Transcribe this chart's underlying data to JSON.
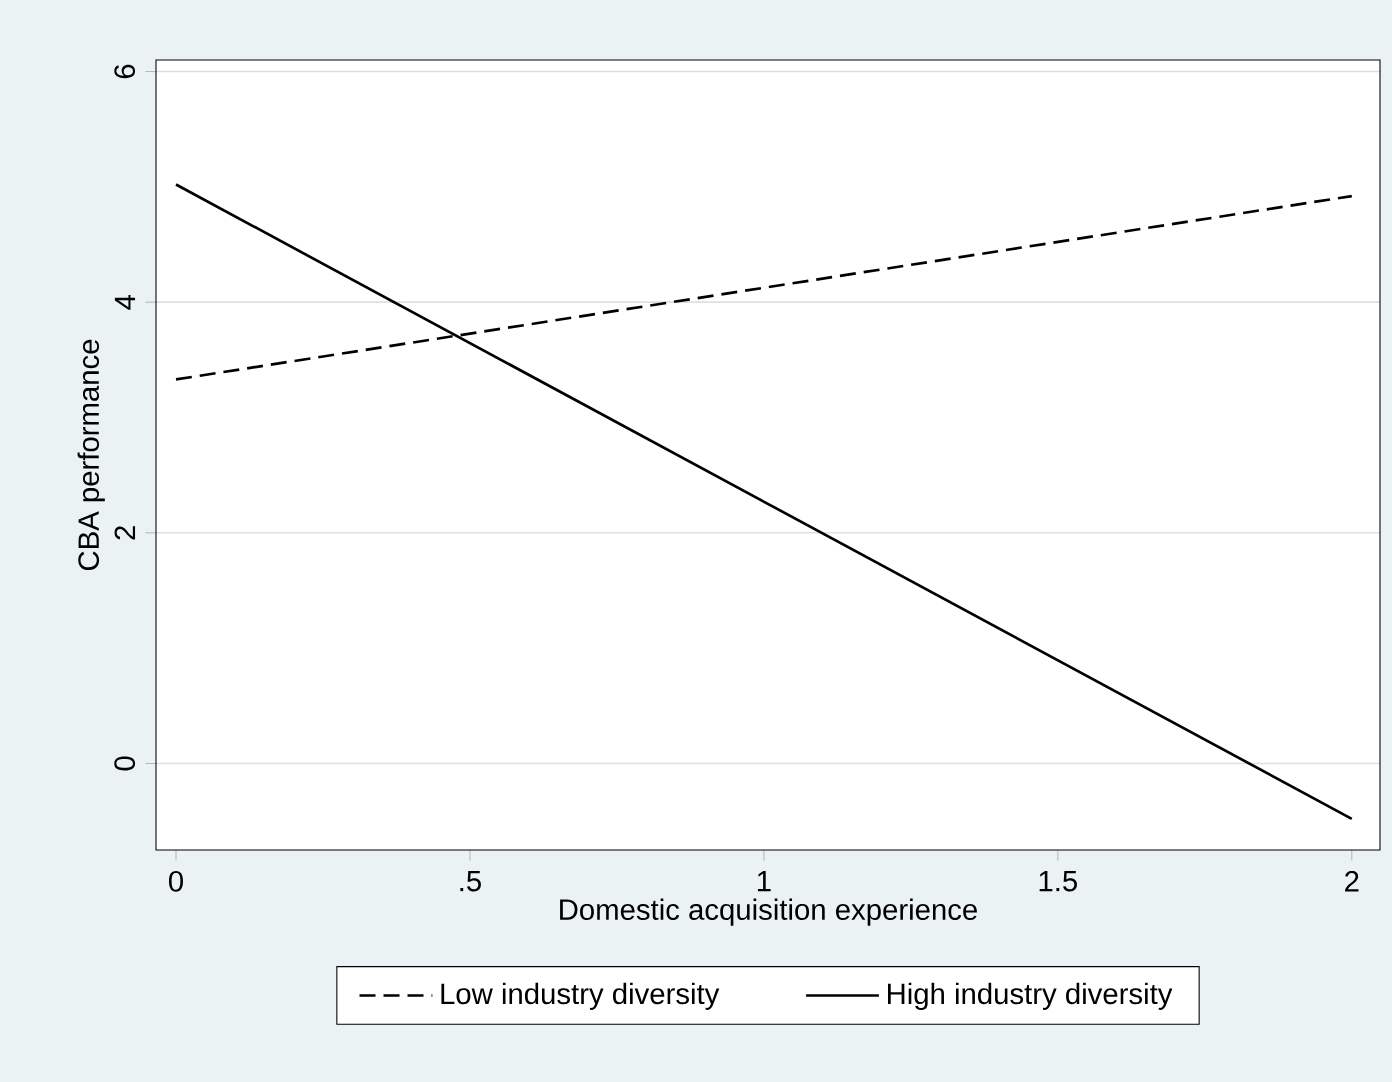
{
  "chart_data": {
    "type": "line",
    "xlabel": "Domestic acquisition experience",
    "ylabel": "CBA performance",
    "xlim": [
      -0.034,
      2.048
    ],
    "ylim": [
      -0.75,
      6.1
    ],
    "xticks": [
      0,
      {
        "value": 0.5,
        "label": ".5"
      },
      1,
      {
        "value": 1.5,
        "label": "1.5"
      },
      2
    ],
    "yticks": [
      0,
      2,
      4,
      6
    ],
    "x": [
      0,
      2
    ],
    "grid": "y",
    "legend": "bottom",
    "marker": "none",
    "series": [
      {
        "name": "Low industry diversity",
        "color": "#000000",
        "line_style": "dashed",
        "values": [
          3.33,
          4.92
        ]
      },
      {
        "name": "High industry diversity",
        "color": "#000000",
        "line_style": "solid",
        "values": [
          5.02,
          -0.48
        ]
      }
    ]
  }
}
